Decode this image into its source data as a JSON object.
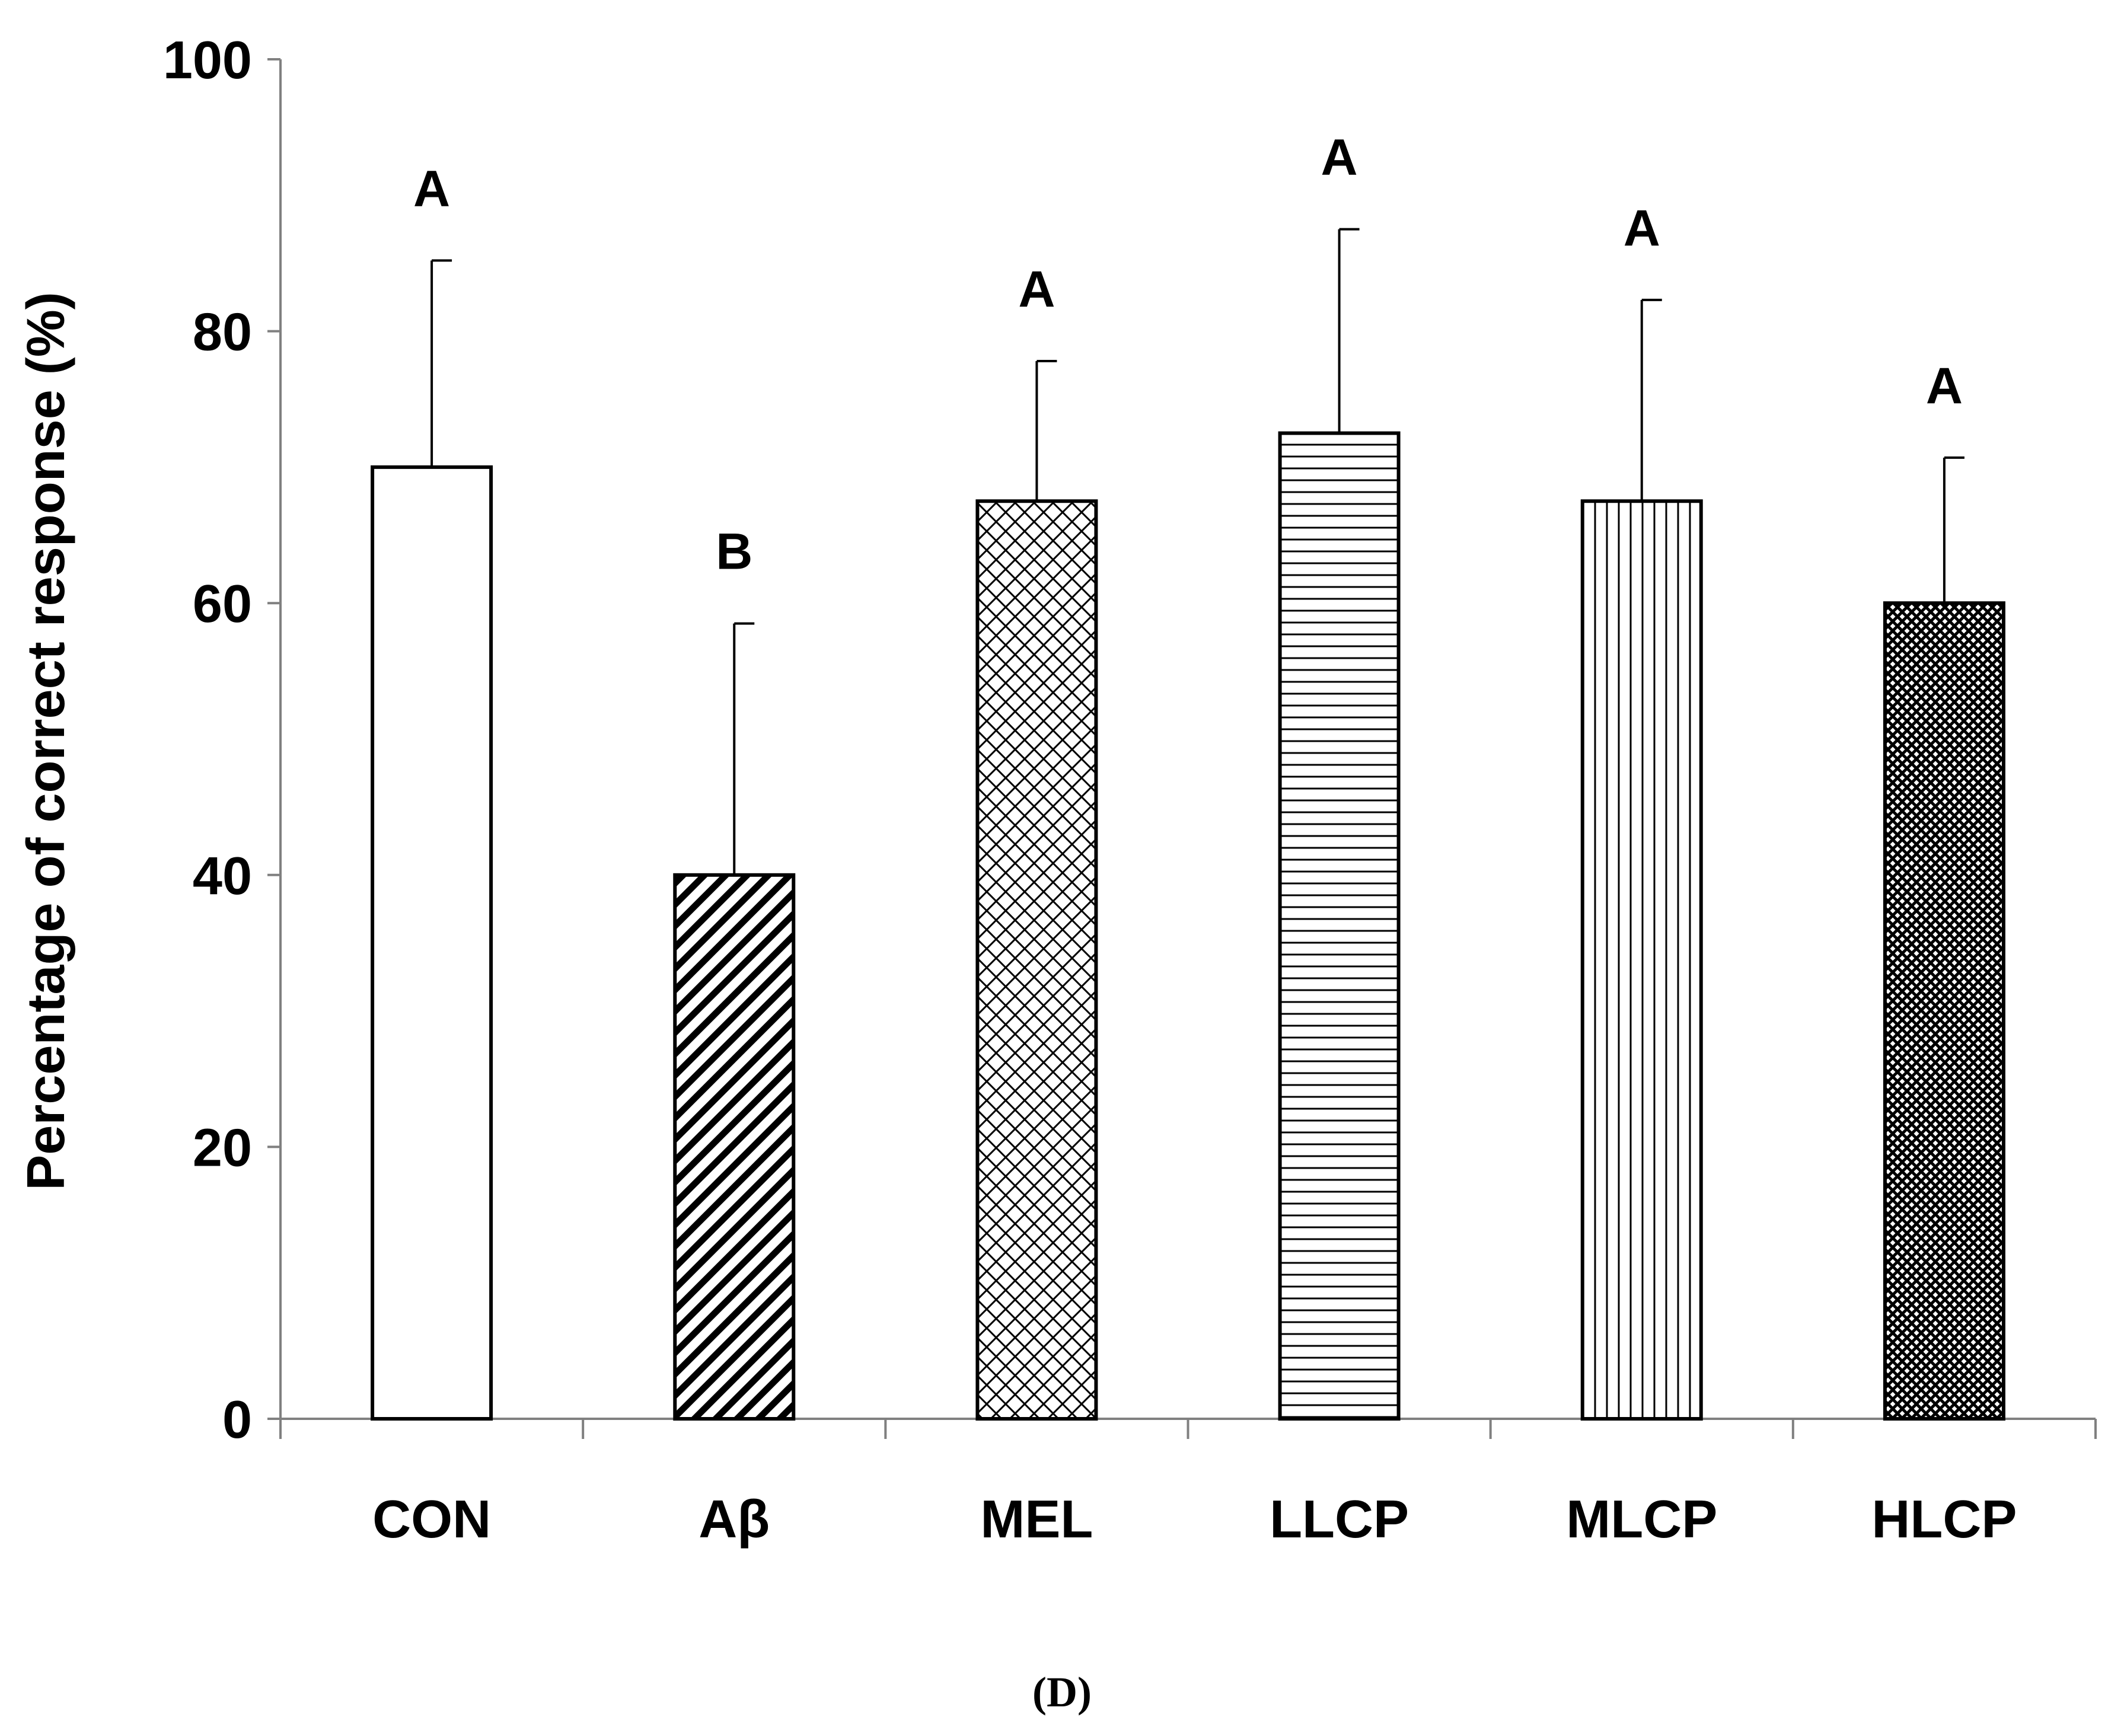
{
  "chart_data": {
    "type": "bar",
    "title": "",
    "xlabel": "",
    "ylabel": "Percentage of correct response (%)",
    "ylim": [
      0,
      100
    ],
    "yticks": [
      0,
      20,
      40,
      60,
      80,
      100
    ],
    "categories": [
      "CON",
      "Aβ",
      "MEL",
      "LLCP",
      "MLCP",
      "HLCP"
    ],
    "values": [
      70,
      40,
      67.5,
      72.5,
      67.5,
      60
    ],
    "errors": [
      15.2,
      18.5,
      10.3,
      15.0,
      14.8,
      10.7
    ],
    "significance": [
      "A",
      "B",
      "A",
      "A",
      "A",
      "A"
    ],
    "fill_patterns": [
      "none",
      "diagonal-stripes",
      "diamond-crosshatch",
      "horizontal-lines",
      "vertical-lines",
      "dense-dots"
    ],
    "grid": false,
    "legend": "none",
    "panel_label": "(D)"
  },
  "colors": {
    "bar_stroke": "#000000",
    "axis": "#808080",
    "background": "#ffffff"
  }
}
